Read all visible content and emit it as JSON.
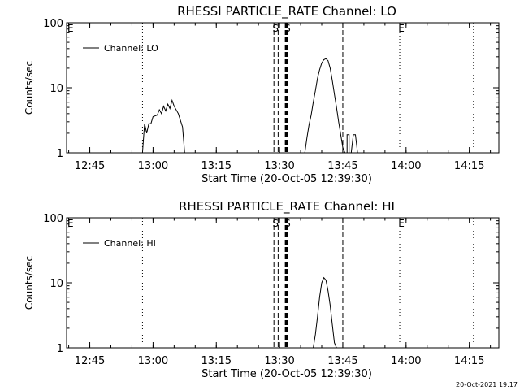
{
  "chart_data": [
    {
      "type": "line",
      "title": "RHESSI PARTICLE_RATE Channel: LO",
      "xlabel": "Start Time (20-Oct-05 12:39:30)",
      "ylabel": "Counts/sec",
      "y_scale": "log",
      "ylim": [
        1,
        100
      ],
      "xlim": [
        "12:39:30",
        "14:22:00"
      ],
      "x_ticks": [
        "12:45",
        "13:00",
        "13:15",
        "13:30",
        "13:45",
        "14:00",
        "14:15"
      ],
      "y_ticks": [
        "1",
        "10",
        "100"
      ],
      "legend": {
        "position": "top-left",
        "entries": [
          "Channel: LO"
        ]
      },
      "series": [
        {
          "name": "Channel: LO",
          "segments": [
            [
              [
                "12:57:30",
                1
              ],
              [
                "12:58:00",
                2.8
              ],
              [
                "12:58:30",
                2.0
              ],
              [
                "12:59:00",
                2.8
              ],
              [
                "12:59:30",
                2.8
              ],
              [
                "13:00:00",
                3.6
              ],
              [
                "13:01:00",
                3.8
              ],
              [
                "13:01:30",
                4.6
              ],
              [
                "13:02:00",
                4.0
              ],
              [
                "13:02:30",
                5.2
              ],
              [
                "13:03:00",
                4.4
              ],
              [
                "13:03:30",
                5.6
              ],
              [
                "13:04:00",
                4.8
              ],
              [
                "13:04:30",
                6.4
              ],
              [
                "13:05:00",
                5.2
              ],
              [
                "13:06:00",
                4.0
              ],
              [
                "13:07:00",
                2.5
              ],
              [
                "13:07:30",
                1
              ]
            ],
            [
              [
                "13:36:00",
                1
              ],
              [
                "13:36:30",
                1.7
              ],
              [
                "13:37:00",
                2.7
              ],
              [
                "13:37:30",
                3.8
              ],
              [
                "13:38:00",
                6
              ],
              [
                "13:38:30",
                9
              ],
              [
                "13:39:00",
                14
              ],
              [
                "13:39:30",
                19
              ],
              [
                "13:40:00",
                24
              ],
              [
                "13:40:30",
                27
              ],
              [
                "13:41:00",
                28
              ],
              [
                "13:41:30",
                26
              ],
              [
                "13:42:00",
                20
              ],
              [
                "13:42:30",
                13
              ],
              [
                "13:43:00",
                8
              ],
              [
                "13:43:30",
                5
              ],
              [
                "13:44:00",
                3
              ],
              [
                "13:44:30",
                1.9
              ],
              [
                "13:45:00",
                1.2
              ],
              [
                "13:45:30",
                1
              ]
            ],
            [
              [
                "13:46:00",
                1
              ],
              [
                "13:46:00",
                1.9
              ],
              [
                "13:46:30",
                1.9
              ],
              [
                "13:46:30",
                1
              ]
            ],
            [
              [
                "13:47:00",
                1
              ],
              [
                "13:47:30",
                1.9
              ],
              [
                "13:48:00",
                1.9
              ],
              [
                "13:48:30",
                1
              ]
            ]
          ]
        }
      ],
      "vertical_lines": [
        {
          "x": "12:57:30",
          "style": "dotted",
          "label": ""
        },
        {
          "x": "13:28:40",
          "style": "dashed",
          "label": "S"
        },
        {
          "x": "13:29:40",
          "style": "dashed",
          "label": ""
        },
        {
          "x": "13:31:30",
          "style": "dashed-thick",
          "label": "S"
        },
        {
          "x": "13:31:50",
          "style": "dashed-thick",
          "label": ""
        },
        {
          "x": "13:45:00",
          "style": "dashed",
          "label": ""
        },
        {
          "x": "13:58:30",
          "style": "dotted",
          "label": "E"
        },
        {
          "x": "14:16:00",
          "style": "dotted",
          "label": ""
        }
      ],
      "edge_marks": [
        "E"
      ]
    },
    {
      "type": "line",
      "title": "RHESSI PARTICLE_RATE Channel: HI",
      "xlabel": "Start Time (20-Oct-05 12:39:30)",
      "ylabel": "Counts/sec",
      "y_scale": "log",
      "ylim": [
        1,
        100
      ],
      "xlim": [
        "12:39:30",
        "14:22:00"
      ],
      "x_ticks": [
        "12:45",
        "13:00",
        "13:15",
        "13:30",
        "13:45",
        "14:00",
        "14:15"
      ],
      "y_ticks": [
        "1",
        "10",
        "100"
      ],
      "legend": {
        "position": "top-left",
        "entries": [
          "Channel: HI"
        ]
      },
      "series": [
        {
          "name": "Channel: HI",
          "segments": [
            [
              [
                "13:38:00",
                1
              ],
              [
                "13:38:30",
                1.6
              ],
              [
                "13:39:00",
                3
              ],
              [
                "13:39:30",
                6
              ],
              [
                "13:40:00",
                10
              ],
              [
                "13:40:30",
                12
              ],
              [
                "13:41:00",
                11
              ],
              [
                "13:41:30",
                7.5
              ],
              [
                "13:42:00",
                4.5
              ],
              [
                "13:42:30",
                2.3
              ],
              [
                "13:43:00",
                1.2
              ],
              [
                "13:43:30",
                1
              ]
            ]
          ]
        }
      ],
      "vertical_lines": [
        {
          "x": "12:57:30",
          "style": "dotted",
          "label": ""
        },
        {
          "x": "13:28:40",
          "style": "dashed",
          "label": "S"
        },
        {
          "x": "13:29:40",
          "style": "dashed",
          "label": ""
        },
        {
          "x": "13:31:30",
          "style": "dashed-thick",
          "label": "S"
        },
        {
          "x": "13:31:50",
          "style": "dashed-thick",
          "label": ""
        },
        {
          "x": "13:45:00",
          "style": "dashed",
          "label": ""
        },
        {
          "x": "13:58:30",
          "style": "dotted",
          "label": "E"
        },
        {
          "x": "14:16:00",
          "style": "dotted",
          "label": ""
        }
      ],
      "edge_marks": [
        "E"
      ]
    }
  ],
  "footer_timestamp": "20-Oct-2021 19:17"
}
